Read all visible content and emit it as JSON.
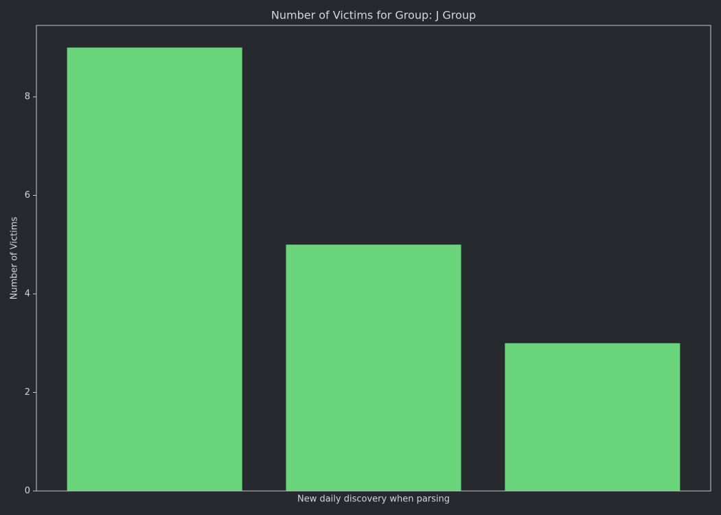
{
  "chart_data": {
    "type": "bar",
    "title": "Number of Victims for Group: J Group",
    "xlabel": "New daily discovery when parsing",
    "ylabel": "Number of Victims",
    "categories": [
      null,
      null,
      null
    ],
    "values": [
      9,
      5,
      3
    ],
    "color": "#6ad47b",
    "ylim": [
      0,
      9.45
    ],
    "yticks": [
      0,
      2,
      4,
      6,
      8
    ],
    "grid": false
  }
}
